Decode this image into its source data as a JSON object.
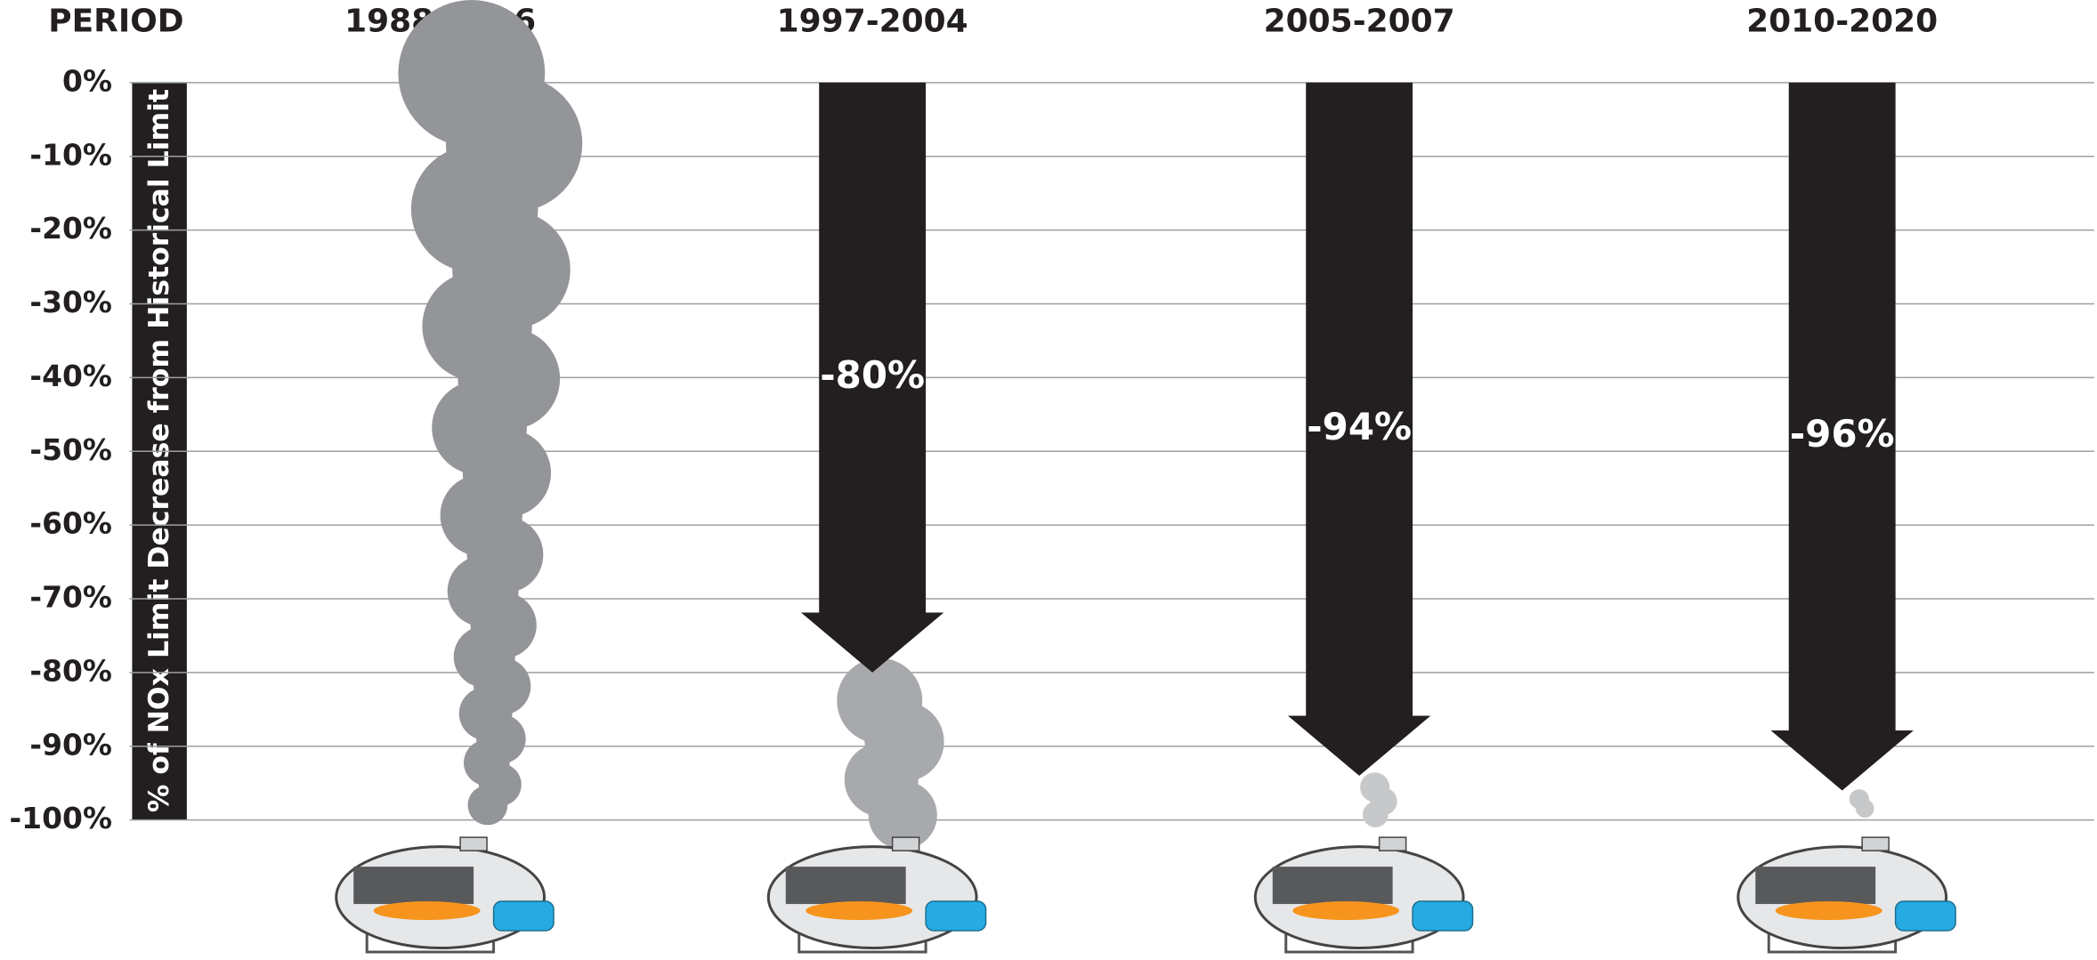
{
  "chart_data": {
    "type": "arrow",
    "header": "PERIOD",
    "y_axis_label": "% of NOx Limit Decrease from Historical Limit",
    "categories": [
      "1988-1996",
      "1997-2004",
      "2005-2007",
      "2010-2020"
    ],
    "values": [
      null,
      -80,
      -94,
      -96
    ],
    "value_labels": [
      null,
      "-80%",
      "-94%",
      "-96%"
    ],
    "color": "#231f20",
    "ylim": [
      -100,
      0
    ],
    "yticks": [
      {
        "value": 0,
        "label": "0%"
      },
      {
        "value": -10,
        "label": "-10%"
      },
      {
        "value": -20,
        "label": "-20%"
      },
      {
        "value": -30,
        "label": "-30%"
      },
      {
        "value": -40,
        "label": "-40%"
      },
      {
        "value": -50,
        "label": "-50%"
      },
      {
        "value": -60,
        "label": "-60%"
      },
      {
        "value": -70,
        "label": "-70%"
      },
      {
        "value": -80,
        "label": "-80%"
      },
      {
        "value": -90,
        "label": "-90%"
      },
      {
        "value": -100,
        "label": "-100%"
      }
    ],
    "grid": true
  }
}
